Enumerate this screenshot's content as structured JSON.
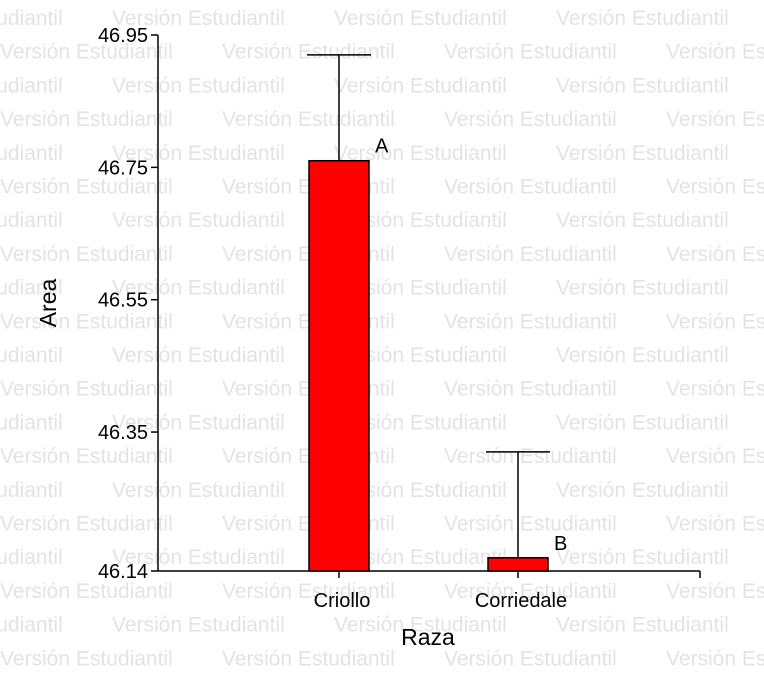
{
  "watermark": {
    "text": "Versión Estudiantil",
    "color": "#e3e3e3"
  },
  "chart_data": {
    "type": "bar",
    "categories": [
      "Criollo",
      "Corriedale"
    ],
    "values": [
      46.76,
      46.16
    ],
    "error_upper": [
      46.92,
      46.32
    ],
    "data_labels": [
      "A",
      "B"
    ],
    "title": "",
    "xlabel": "Raza",
    "ylabel": "Area",
    "ylim": [
      46.14,
      46.95
    ],
    "yticks": [
      "46.14",
      "46.35",
      "46.55",
      "46.75",
      "46.95"
    ],
    "grid": false,
    "bar_color": "#ff0000",
    "edge_color": "#000000"
  }
}
